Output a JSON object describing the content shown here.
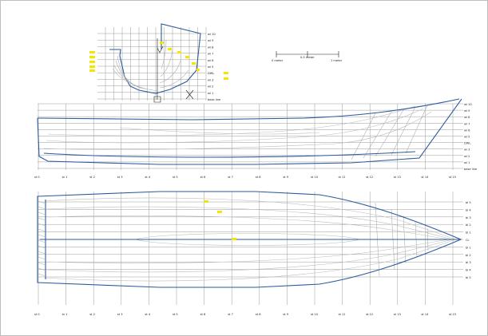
{
  "scale": {
    "left": "0 meter",
    "mid": "0.5 meter",
    "right": "1 meter"
  },
  "body_plan": {
    "wl_labels": [
      "wl 10",
      "wl 9",
      "wl 8",
      "wl 7",
      "wl 6",
      "wl 5",
      "DWL",
      "wl 3",
      "wl 2",
      "wl 1",
      "base line"
    ]
  },
  "profile": {
    "wl_labels": [
      "wl 10",
      "wl 9",
      "wl 8",
      "wl 7",
      "wl 6",
      "wl 5",
      "DWL",
      "wl 3",
      "wl 2",
      "wl 1",
      "base line"
    ],
    "station_labels": [
      "st 0",
      "st 1",
      "st 2",
      "st 3",
      "st 4",
      "st 5",
      "st 6",
      "st 7",
      "st 8",
      "st 9",
      "st 10",
      "st 11",
      "st 12",
      "st 13",
      "st 14",
      "st 15"
    ]
  },
  "plan": {
    "bl_labels": [
      "bl 5",
      "bl 4",
      "bl 3",
      "bl 2",
      "bl 1",
      "CL",
      "bl 1",
      "bl 2",
      "bl 3",
      "bl 4",
      "bl 5"
    ],
    "station_labels": [
      "st 0",
      "st 1",
      "st 2",
      "st 3",
      "st 4",
      "st 5",
      "st 6",
      "st 7",
      "st 8",
      "st 9",
      "st 10",
      "st 11",
      "st 12",
      "st 13",
      "st 14",
      "st 15"
    ]
  },
  "colors": {
    "hull": "#2e5a9c",
    "highlight": "#f4e600",
    "grid": "#9a9a9a"
  }
}
